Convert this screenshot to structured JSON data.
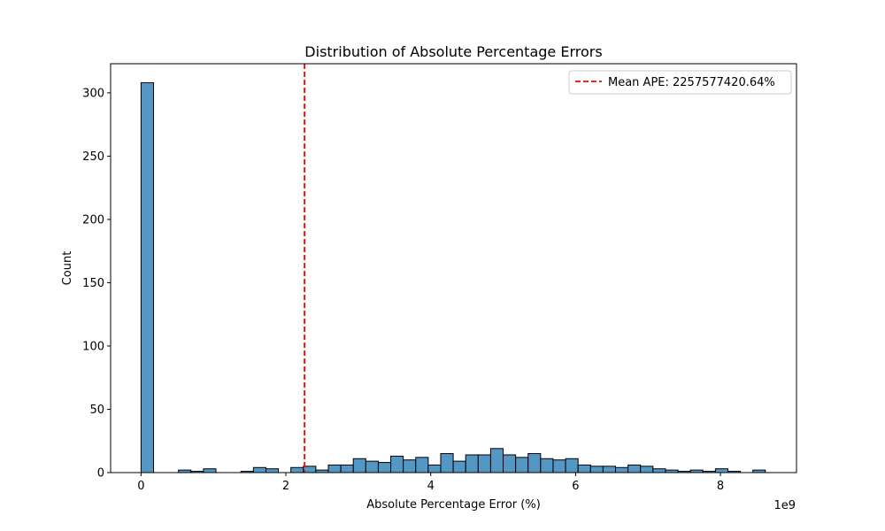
{
  "chart_data": {
    "type": "bar",
    "title": "Distribution of Absolute Percentage Errors",
    "xlabel": "Absolute Percentage Error (%)",
    "ylabel": "Count",
    "x_offset_label": "1e9",
    "xlim": [
      -0.42,
      9.05
    ],
    "ylim": [
      0,
      323
    ],
    "x_ticks": [
      0,
      2,
      4,
      6,
      8
    ],
    "x_tick_labels": [
      "0",
      "2",
      "4",
      "6",
      "8"
    ],
    "y_ticks": [
      0,
      50,
      100,
      150,
      200,
      250,
      300
    ],
    "y_tick_labels": [
      "0",
      "50",
      "100",
      "150",
      "200",
      "250",
      "300"
    ],
    "bin_width": 0.1724,
    "bin_start": 0,
    "counts": [
      308,
      0,
      0,
      2,
      1,
      3,
      0,
      0,
      1,
      4,
      3,
      0,
      4,
      5,
      2,
      6,
      6,
      11,
      9,
      8,
      13,
      10,
      12,
      6,
      15,
      9,
      14,
      14,
      19,
      14,
      12,
      15,
      11,
      10,
      11,
      6,
      5,
      5,
      4,
      6,
      5,
      3,
      2,
      1,
      2,
      1,
      3,
      1,
      0,
      2
    ],
    "bar_color": "#5497c5",
    "mean_line": {
      "value": 2.2576,
      "color": "#ff0000",
      "style": "dashed"
    },
    "legend": {
      "label": "Mean APE: 2257577420.64%",
      "placement": "upper right"
    },
    "grid": false
  }
}
